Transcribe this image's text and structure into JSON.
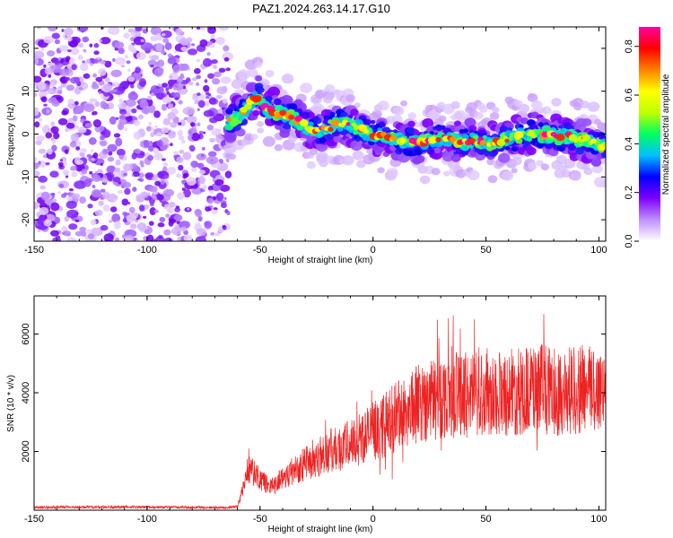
{
  "title": "PAZ1.2024.263.14.17.G10",
  "chart_data": [
    {
      "type": "heatmap",
      "title": "PAZ1.2024.263.14.17.G10",
      "xlabel": "Height of straight line (km)",
      "ylabel": "Frequency (Hz)",
      "xlim": [
        -150,
        103
      ],
      "ylim": [
        -25,
        25
      ],
      "xticks": [
        -150,
        -100,
        -50,
        0,
        50,
        100
      ],
      "yticks": [
        -20,
        -10,
        0,
        10,
        20
      ],
      "colorbar": {
        "label": "Normalized spectral amplitude",
        "range": [
          0,
          0.88
        ],
        "ticks": [
          "0.0",
          "0.2",
          "0.4",
          "0.6",
          "0.8"
        ],
        "tick_values": [
          0,
          0.2,
          0.4,
          0.6,
          0.8
        ],
        "colormap": [
          "#ffffff",
          "#c090ff",
          "#7f00ff",
          "#0000ff",
          "#00c0ff",
          "#00ff60",
          "#c0ff00",
          "#ffff00",
          "#ff8000",
          "#ff0000",
          "#ff00a0"
        ]
      },
      "noise_region": {
        "x": [
          -150,
          -64
        ],
        "y": [
          -25,
          25
        ]
      },
      "ridge": {
        "x": [
          -64,
          -60,
          -56,
          -53,
          -51,
          -48,
          -45,
          -40,
          -35,
          -30,
          -25,
          -20,
          -15,
          -10,
          -5,
          0,
          5,
          10,
          15,
          20,
          25,
          30,
          35,
          40,
          45,
          50,
          55,
          60,
          65,
          70,
          75,
          80,
          85,
          90,
          95,
          100,
          103
        ],
        "y": [
          3,
          4,
          6,
          8,
          9,
          6,
          5.5,
          4.5,
          3.5,
          2,
          1,
          1.5,
          2.5,
          2,
          1,
          0,
          -0.5,
          -1,
          -2,
          -2,
          -1.5,
          -1,
          -1.5,
          -2,
          -1.5,
          -2,
          -2,
          -1,
          -0.5,
          0,
          0,
          -0.5,
          -0.5,
          -1,
          -1.5,
          -2.5,
          -3
        ]
      }
    },
    {
      "type": "line",
      "xlabel": "Height of straight line (km)",
      "ylabel": "SNR (10 * v/v)",
      "xlim": [
        -150,
        103
      ],
      "ylim": [
        0,
        7300
      ],
      "xticks": [
        -150,
        -100,
        -50,
        0,
        50,
        100
      ],
      "yticks": [
        2000,
        4000,
        6000
      ],
      "color": "#ee2222",
      "envelope": {
        "x": [
          -150,
          -110,
          -65,
          -60,
          -58,
          -55,
          -52,
          -50,
          -45,
          -40,
          -35,
          -30,
          -25,
          -20,
          -15,
          -10,
          -5,
          0,
          5,
          10,
          15,
          20,
          25,
          30,
          35,
          40,
          45,
          50,
          55,
          60,
          65,
          70,
          75,
          80,
          85,
          90,
          95,
          100,
          103
        ],
        "y": [
          100,
          110,
          90,
          120,
          600,
          1500,
          1200,
          1000,
          800,
          1100,
          1400,
          1600,
          1800,
          2000,
          2100,
          2300,
          2500,
          2700,
          2900,
          3200,
          3500,
          3800,
          3900,
          4000,
          4100,
          4100,
          4100,
          4200,
          4200,
          4200,
          4200,
          4300,
          4300,
          4200,
          4200,
          4300,
          4300,
          4300,
          4300
        ]
      }
    }
  ]
}
